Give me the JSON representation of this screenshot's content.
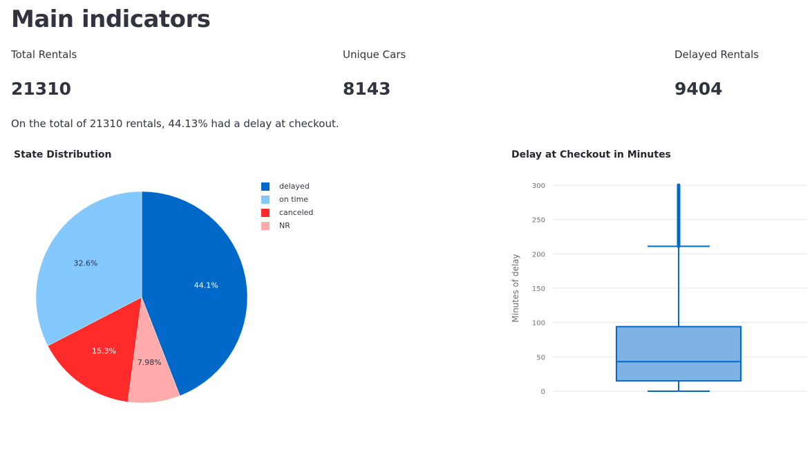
{
  "page": {
    "title": "Main indicators",
    "summary": "On the total of 21310 rentals, 44.13% had a delay at checkout."
  },
  "metrics": [
    {
      "label": "Total Rentals",
      "value": "21310"
    },
    {
      "label": "Unique Cars",
      "value": "8143"
    },
    {
      "label": "Delayed Rentals",
      "value": "9404"
    }
  ],
  "chart_data": [
    {
      "type": "pie",
      "title": "State Distribution",
      "legend_position": "top-right",
      "slices": [
        {
          "name": "delayed",
          "value": 44.1,
          "label": "44.1%",
          "color": "#0068c9"
        },
        {
          "name": "NR",
          "value": 7.98,
          "label": "7.98%",
          "color": "#ffabab"
        },
        {
          "name": "canceled",
          "value": 15.3,
          "label": "15.3%",
          "color": "#ff2b2b"
        },
        {
          "name": "on time",
          "value": 32.6,
          "label": "32.6%",
          "color": "#83c9ff"
        }
      ],
      "legend": [
        {
          "name": "delayed",
          "color": "#0068c9"
        },
        {
          "name": "on time",
          "color": "#83c9ff"
        },
        {
          "name": "canceled",
          "color": "#ff2b2b"
        },
        {
          "name": "NR",
          "color": "#ffabab"
        }
      ]
    },
    {
      "type": "box",
      "title": "Delay at Checkout in Minutes",
      "ylabel": "Minutes of delay",
      "ylim": [
        0,
        300
      ],
      "yticks": [
        0,
        50,
        100,
        150,
        200,
        250,
        300
      ],
      "grid": true,
      "color": "#0068c9",
      "fill": "#7fb3e4",
      "stats": {
        "min": 0,
        "q1": 15,
        "median": 43,
        "q3": 94,
        "upper_fence": 211
      },
      "outliers_range": [
        211,
        300
      ]
    }
  ]
}
